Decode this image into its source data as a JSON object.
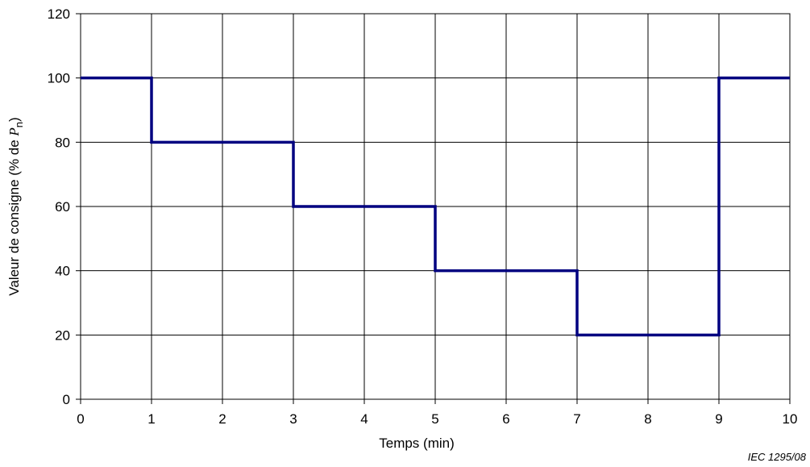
{
  "chart_data": {
    "type": "line",
    "step": true,
    "x": [
      0,
      1,
      1,
      3,
      3,
      5,
      5,
      7,
      7,
      9,
      9,
      10
    ],
    "y": [
      100,
      100,
      80,
      80,
      60,
      60,
      40,
      40,
      20,
      20,
      100,
      100
    ],
    "xlim": [
      0,
      10
    ],
    "ylim": [
      0,
      120
    ],
    "xticks": [
      "0",
      "1",
      "2",
      "3",
      "4",
      "5",
      "6",
      "7",
      "8",
      "9",
      "10"
    ],
    "yticks": [
      "0",
      "20",
      "40",
      "60",
      "80",
      "100",
      "120"
    ],
    "xlabel": "Temps   (min)",
    "ylabel_prefix": "Valeur de consigne   (% de ",
    "ylabel_var": "P",
    "ylabel_sub": "n",
    "ylabel_suffix": ")",
    "grid": true,
    "line_color": "#000080",
    "grid_color": "#000000"
  },
  "source_label": "IEC   1295/08"
}
